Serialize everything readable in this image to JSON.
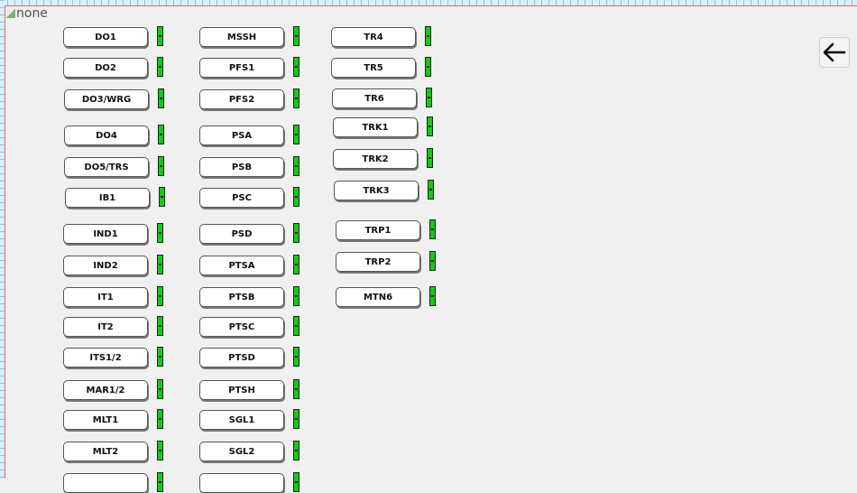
{
  "broken_image_alt": "none",
  "back_button": {
    "icon": "arrow-left-icon"
  },
  "indicator_color": "#11cc11",
  "columns": [
    {
      "items": [
        "DO1",
        "DO2",
        "DO3/WRG",
        "DO4",
        "DO5/TRS",
        "IB1",
        "IND1",
        "IND2",
        "IT1",
        "IT2",
        "ITS1/2",
        "MAR1/2",
        "MLT1",
        "MLT2",
        ""
      ]
    },
    {
      "items": [
        "MSSH",
        "PFS1",
        "PFS2",
        "PSA",
        "PSB",
        "PSC",
        "PSD",
        "PTSA",
        "PTSB",
        "PTSC",
        "PTSD",
        "PTSH",
        "SGL1",
        "SGL2",
        ""
      ]
    },
    {
      "items": [
        "TR4",
        "TR5",
        "TR6",
        "TRK1",
        "TRK2",
        "TRK3",
        "TRP1",
        "TRP2",
        "MTN6"
      ]
    }
  ]
}
